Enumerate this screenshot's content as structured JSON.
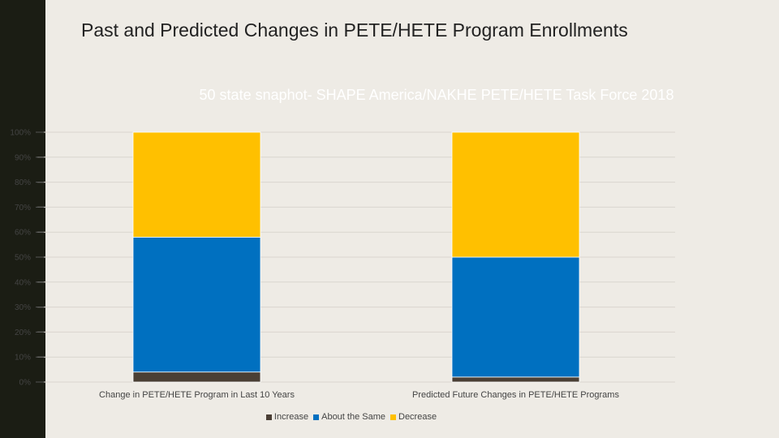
{
  "slide": {
    "title": "Past and Predicted Changes in PETE/HETE Program Enrollments"
  },
  "chart_data": {
    "type": "bar",
    "stacked": true,
    "title": "50 state snaphot- SHAPE America/NAKHE PETE/HETE Task Force 2018",
    "categories": [
      "Change in PETE/HETE Program in Last 10 Years",
      "Predicted Future Changes in PETE/HETE Programs"
    ],
    "series": [
      {
        "name": "Increase",
        "values": [
          4,
          2
        ],
        "color": "#4a3f35"
      },
      {
        "name": "About the Same",
        "values": [
          54,
          48
        ],
        "color": "#0070c0"
      },
      {
        "name": "Decrease",
        "values": [
          42,
          50
        ],
        "color": "#ffc000"
      }
    ],
    "ylim": [
      0,
      100
    ],
    "yticks": [
      "0%",
      "10%",
      "20%",
      "30%",
      "40%",
      "50%",
      "60%",
      "70%",
      "80%",
      "90%",
      "100%"
    ],
    "grid": true,
    "legend_position": "bottom"
  }
}
